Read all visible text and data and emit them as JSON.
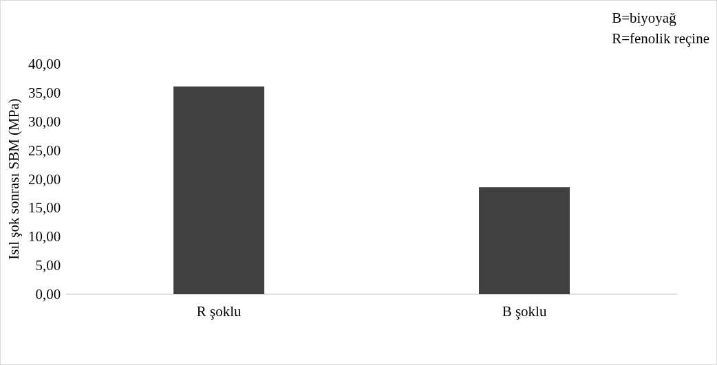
{
  "chart_data": {
    "type": "bar",
    "ylabel": "Isıl şok sonrası SBM (MPa)",
    "categories": [
      "R şoklu",
      "B şoklu"
    ],
    "values": [
      36.1,
      18.6
    ],
    "color": "#404040",
    "ylim": [
      0,
      40
    ],
    "yticks": [
      {
        "value": 0,
        "label": "0,00"
      },
      {
        "value": 5,
        "label": "5,00"
      },
      {
        "value": 10,
        "label": "10,00"
      },
      {
        "value": 15,
        "label": "15,00"
      },
      {
        "value": 20,
        "label": "20,00"
      },
      {
        "value": 25,
        "label": "25,00"
      },
      {
        "value": 30,
        "label": "30,00"
      },
      {
        "value": 35,
        "label": "35,00"
      },
      {
        "value": 40,
        "label": "40,00"
      }
    ],
    "grid": false,
    "annotations": [
      "B=biyoyağ",
      "R=fenolik reçine"
    ]
  }
}
